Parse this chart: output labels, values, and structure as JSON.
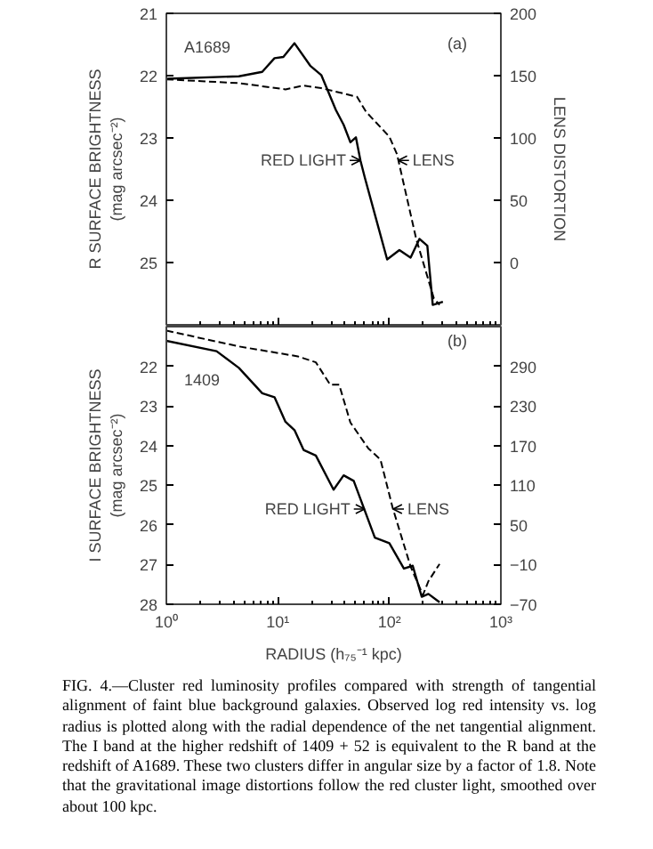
{
  "chart_data": [
    {
      "type": "line",
      "log": "x",
      "xlim": [
        1,
        1000
      ],
      "xticks": [
        {
          "value": 1,
          "label": null
        },
        {
          "value": 10,
          "label": null
        },
        {
          "value": 100,
          "label": null
        },
        {
          "value": 1000,
          "label": null
        }
      ],
      "tick_labels": "y",
      "ylim": [
        26,
        21
      ],
      "yticks": [
        21,
        22,
        23,
        24,
        25
      ],
      "y2lim": [
        -50,
        200
      ],
      "y2ticks": [
        0,
        50,
        100,
        150,
        200
      ],
      "ylabel": "R SURFACE BRIGHTNESS\n(mag arcsec⁻²)",
      "y2label": "LENS DISTORTION",
      "grid": false,
      "annotations": [
        "A1689",
        "(a)",
        {
          "text": "RED LIGHT",
          "x": 55,
          "y": 23.36
        },
        {
          "text": "LENS",
          "x": 120,
          "y": 23.36
        }
      ],
      "series": [
        {
          "color": "#000000",
          "line_style": "solid",
          "x": [
            1.02,
            4.47,
            7.24,
            9.33,
            11.2,
            14.1,
            19.5,
            24.5,
            33.1,
            38.9,
            44.7,
            50.1,
            55,
            60.3,
            95.5,
            123,
            155,
            186,
            219,
            245,
            302
          ],
          "values": [
            22.05,
            22.01,
            21.94,
            21.72,
            21.7,
            21.48,
            21.84,
            21.99,
            22.55,
            22.79,
            23.07,
            22.99,
            23.36,
            23.64,
            24.95,
            24.8,
            24.92,
            24.62,
            24.73,
            25.68,
            25.63
          ]
        },
        {
          "color": "#000000",
          "line_style": "dashed",
          "axis": "y2",
          "x": [
            1.0,
            4.47,
            11.7,
            17.0,
            24.5,
            51.3,
            61.7,
            100,
            117,
            174,
            251,
            282
          ],
          "values": [
            147,
            144,
            139,
            142,
            140,
            133,
            121,
            101,
            87,
            19,
            -29,
            -34
          ]
        }
      ]
    },
    {
      "type": "line",
      "log": "x",
      "xlim": [
        1,
        1000
      ],
      "xticks": [
        {
          "value": 1,
          "label": "10⁰"
        },
        {
          "value": 10,
          "label": "10¹"
        },
        {
          "value": 100,
          "label": "10²"
        },
        {
          "value": 1000,
          "label": "10³"
        }
      ],
      "ylim": [
        28,
        21
      ],
      "yticks": [
        22,
        23,
        24,
        25,
        26,
        27,
        28
      ],
      "y2lim": [
        -70,
        350
      ],
      "y2ticks": [
        -70,
        -10,
        50,
        110,
        170,
        230,
        290
      ],
      "xlabel": "RADIUS (h₇₅⁻¹ kpc)",
      "ylabel": "I SURFACE BRIGHTNESS\n(mag arcsec⁻²)",
      "grid": false,
      "annotations": [
        "1409",
        "(b)",
        {
          "text": "RED LIGHT",
          "x": 60,
          "y": 25.6
        },
        {
          "text": "LENS",
          "x": 108,
          "y": 25.6
        },
        "FIG. 4.—Cluster red luminosity profiles compared with strength of tangential alignment of faint blue background galaxies. Observed log red intensity vs. log radius is plotted along with the radial dependence of the net tangential alignment. The I band at the higher redshift of 1409 + 52 is equivalent to the R band at the redshift of A1689. These two clusters differ in angular size by a factor of 1.8. Note that the gravitational image distortions follow the red cluster light, smoothed over about 100 kpc."
      ],
      "series": [
        {
          "color": "#000000",
          "line_style": "solid",
          "x": [
            1.0,
            2.82,
            4.47,
            7.24,
            9.33,
            11.7,
            14.1,
            17.0,
            21.9,
            31.6,
            38.9,
            47.9,
            74.1,
            100,
            135,
            162,
            195,
            224,
            282
          ],
          "values": [
            21.36,
            21.62,
            22.04,
            22.68,
            22.78,
            23.4,
            23.61,
            24.11,
            24.25,
            25.11,
            24.75,
            24.89,
            26.32,
            26.46,
            27.1,
            27.03,
            27.81,
            27.74,
            27.95
          ]
        },
        {
          "color": "#000000",
          "line_style": "dashed",
          "axis": "y2",
          "x": [
            1.0,
            4.47,
            15.1,
            21.9,
            29.5,
            35.5,
            44.7,
            64.6,
            83.2,
            107,
            155,
            200,
            224,
            282
          ],
          "values": [
            344,
            320,
            305,
            296,
            262,
            262,
            205,
            166,
            149,
            76,
            -13,
            -56,
            -35,
            -9
          ]
        }
      ]
    }
  ]
}
